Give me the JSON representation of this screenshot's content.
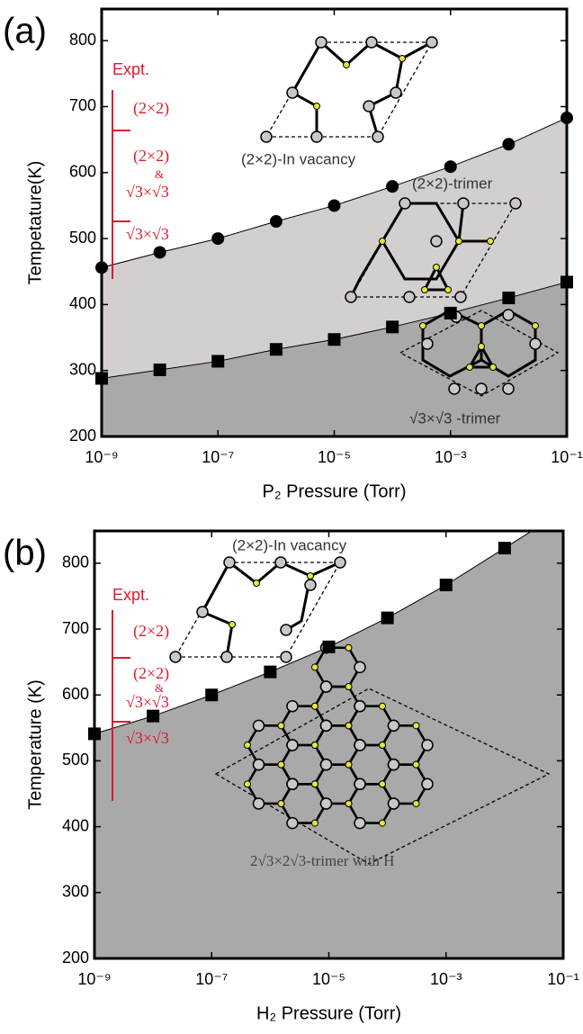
{
  "chart_data": [
    {
      "type": "scatter",
      "panel_label": "(a)",
      "ylabel": "Tempetature(K)",
      "xlabel": "P₂ Pressure (Torr)",
      "xscale": "log",
      "xlim": [
        1e-09,
        0.1
      ],
      "ylim": [
        200,
        848
      ],
      "xticks": [
        {
          "value": 1e-09,
          "label": "10⁻⁹"
        },
        {
          "value": 1e-07,
          "label": "10⁻⁷"
        },
        {
          "value": 1e-05,
          "label": "10⁻⁵"
        },
        {
          "value": 0.001,
          "label": "10⁻³"
        },
        {
          "value": 0.1,
          "label": "10⁻¹"
        }
      ],
      "yticks": [
        200,
        300,
        400,
        500,
        600,
        700,
        800
      ],
      "x": [
        1e-09,
        1e-08,
        1e-07,
        1e-06,
        1e-05,
        0.0001,
        0.001,
        0.01,
        0.1
      ],
      "series": [
        {
          "marker": "circle",
          "color": "#000000",
          "fill": "#d3cfcf",
          "values": [
            456,
            479,
            500,
            526,
            550,
            579,
            609,
            643,
            683
          ]
        },
        {
          "marker": "square",
          "color": "#000000",
          "fill": "#a9a9a9",
          "values": [
            288,
            301,
            314,
            332,
            347,
            366,
            387,
            410,
            434
          ]
        }
      ],
      "annotations": [
        {
          "text": "Expt.",
          "color": "#e0182d"
        },
        {
          "text": "(2×2)",
          "color": "#e0182d"
        },
        {
          "text": "(2×2)",
          "color": "#e0182d"
        },
        {
          "text": "&",
          "color": "#e0182d"
        },
        {
          "text": "√3×√3",
          "color": "#e0182d"
        },
        {
          "text": "√3×√3",
          "color": "#e0182d"
        },
        {
          "text": "(2×2)-In vacancy",
          "color": "#333333"
        },
        {
          "text": "(2×2)-trimer",
          "color": "#333333"
        },
        {
          "text": "√3×√3 -trimer",
          "color": "#333333"
        }
      ]
    },
    {
      "type": "scatter",
      "panel_label": "(b)",
      "ylabel": "Temperature (K)",
      "xlabel": "H₂ Pressure (Torr)",
      "xscale": "log",
      "xlim": [
        1e-09,
        0.1
      ],
      "ylim": [
        200,
        849
      ],
      "xticks": [
        {
          "value": 1e-09,
          "label": "10⁻⁹"
        },
        {
          "value": 1e-07,
          "label": "10⁻⁷"
        },
        {
          "value": 1e-05,
          "label": "10⁻⁵"
        },
        {
          "value": 0.001,
          "label": "10⁻³"
        },
        {
          "value": 0.1,
          "label": "10⁻¹"
        }
      ],
      "yticks": [
        200,
        300,
        400,
        500,
        600,
        700,
        800
      ],
      "x": [
        1e-09,
        1e-08,
        1e-07,
        1e-06,
        1e-05,
        0.0001,
        0.001,
        0.01
      ],
      "series": [
        {
          "marker": "square",
          "color": "#000000",
          "fill": "#a9a9a9",
          "values": [
            541,
            568,
            600,
            635,
            673,
            717,
            767,
            823
          ]
        }
      ],
      "annotations": [
        {
          "text": "(2×2)-In vacancy",
          "color": "#333333"
        },
        {
          "text": "Expt.",
          "color": "#e0182d"
        },
        {
          "text": "(2×2)",
          "color": "#e0182d"
        },
        {
          "text": "(2×2)",
          "color": "#e0182d"
        },
        {
          "text": "&",
          "color": "#e0182d"
        },
        {
          "text": "√3×√3",
          "color": "#e0182d"
        },
        {
          "text": "√3×√3",
          "color": "#e0182d"
        },
        {
          "text": "2√3×2√3-trimer with H",
          "color": "#444444"
        }
      ]
    }
  ]
}
